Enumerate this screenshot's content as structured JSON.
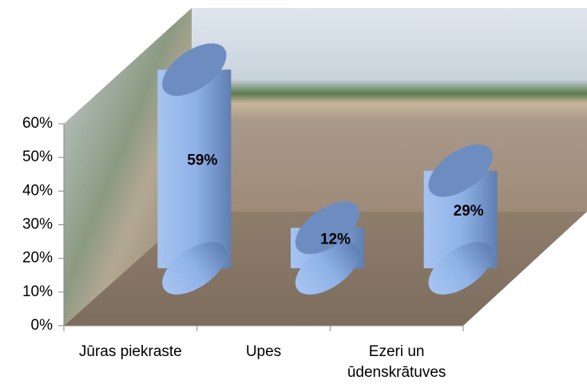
{
  "chart_data": {
    "type": "cylinder",
    "categories": [
      "Jūras piekraste",
      "Upes",
      "Ezeri un ūdenskrātuves"
    ],
    "values": [
      59,
      12,
      29
    ],
    "value_labels": [
      "59%",
      "12%",
      "29%"
    ],
    "color": "#8fb3e8",
    "ylim": [
      0,
      60
    ],
    "yticks": [
      {
        "value": 0,
        "label": "0%"
      },
      {
        "value": 10,
        "label": "10%"
      },
      {
        "value": 20,
        "label": "20%"
      },
      {
        "value": 30,
        "label": "30%"
      },
      {
        "value": 40,
        "label": "40%"
      },
      {
        "value": 50,
        "label": "50%"
      },
      {
        "value": 60,
        "label": "60%"
      }
    ]
  }
}
